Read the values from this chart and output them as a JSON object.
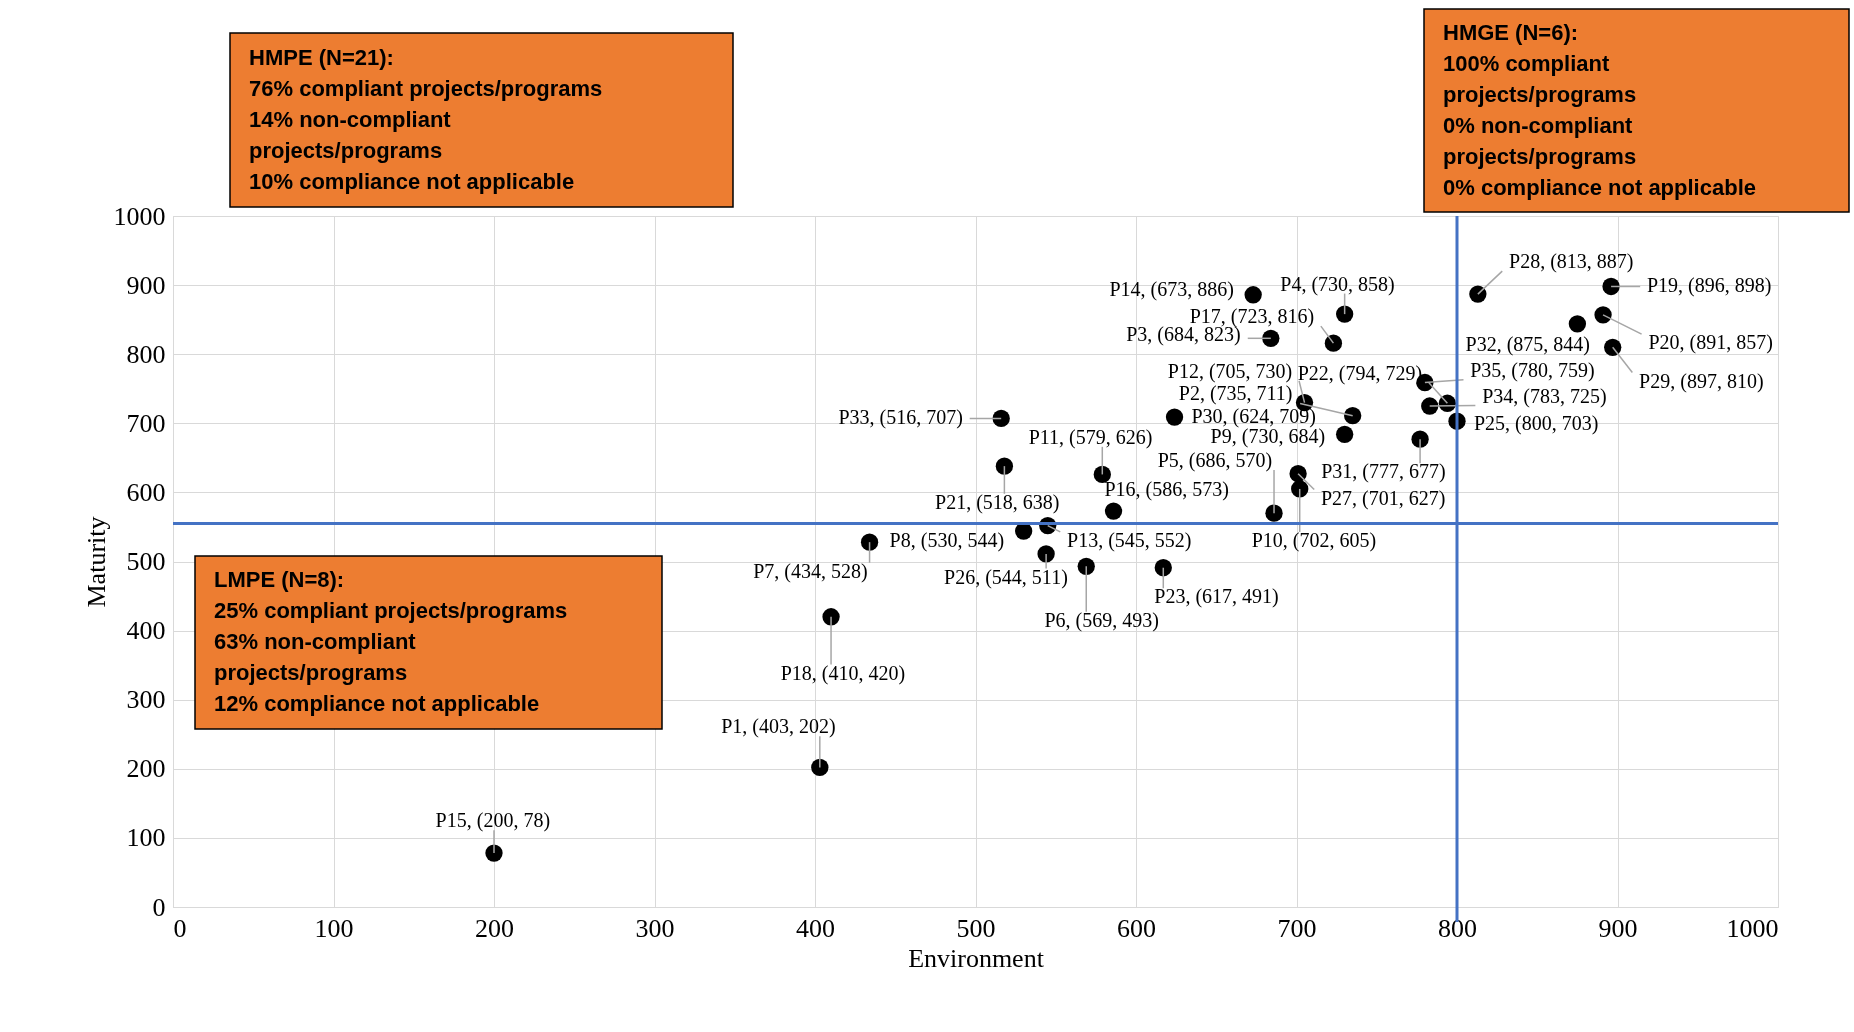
{
  "chart_data": {
    "type": "scatter",
    "xlabel": "Environment",
    "ylabel": "Maturity",
    "x": [
      403,
      735,
      684,
      730,
      686,
      569,
      434,
      530,
      730,
      702,
      579,
      705,
      545,
      673,
      200,
      586,
      723,
      410,
      896,
      891,
      518,
      794,
      617,
      800,
      544,
      701,
      813,
      897,
      624,
      777,
      875,
      516,
      783,
      780
    ],
    "series": [
      {
        "color": "#000000",
        "values": [
          202,
          711,
          823,
          858,
          570,
          493,
          528,
          544,
          684,
          605,
          626,
          730,
          552,
          886,
          78,
          573,
          816,
          420,
          898,
          857,
          638,
          729,
          491,
          703,
          511,
          627,
          887,
          810,
          709,
          677,
          844,
          707,
          725,
          759
        ],
        "value_labels": [
          "P1, (403, 202)",
          "P2, (735, 711)",
          "P3, (684, 823)",
          "P4, (730, 858)",
          "P5, (686, 570)",
          "P6, (569, 493)",
          "P7, (434, 528)",
          "P8, (530, 544)",
          "P9, (730, 684)",
          "P10, (702, 605)",
          "P11, (579, 626)",
          "P12, (705, 730)",
          "P13, (545, 552)",
          "P14, (673, 886)",
          "P15, (200, 78)",
          "P16, (586, 573)",
          "P17, (723, 816)",
          "P18, (410, 420)",
          "P19, (896, 898)",
          "P20, (891, 857)",
          "P21, (518, 638)",
          "P22, (794, 729)",
          "P23, (617, 491)",
          "P25, (800, 703)",
          "P26, (544, 511)",
          "P27, (701, 627)",
          "P28, (813, 887)",
          "P29, (897, 810)",
          "P30, (624, 709)",
          "P31, (777, 677)",
          "P32, (875, 844)",
          "P33, (516, 707)",
          "P34, (783, 725)",
          "P35, (780, 759)"
        ]
      }
    ],
    "xlim": [
      0,
      1000
    ],
    "ylim": [
      0,
      1000
    ],
    "xticks": [
      0,
      100,
      200,
      300,
      400,
      500,
      600,
      700,
      800,
      900,
      1000
    ],
    "yticks": [
      0,
      100,
      200,
      300,
      400,
      500,
      600,
      700,
      800,
      900,
      1000
    ],
    "ref_lines": [
      {
        "axis": "x",
        "value": 800,
        "color": "#4472c4"
      },
      {
        "axis": "y",
        "value": 555,
        "color": "#4472c4"
      }
    ],
    "annotations": [
      "HMPE (N=21):\n76% compliant projects/programs\n14% non-compliant\nprojects/programs\n10% compliance not applicable",
      "HMGE (N=6):\n100% compliant\nprojects/programs\n0% non-compliant\nprojects/programs\n0% compliance not applicable",
      "LMPE (N=8):\n25% compliant projects/programs\n63% non-compliant\nprojects/programs\n12% compliance not applicable"
    ],
    "grid": true,
    "marker": "circle",
    "legend": false
  }
}
